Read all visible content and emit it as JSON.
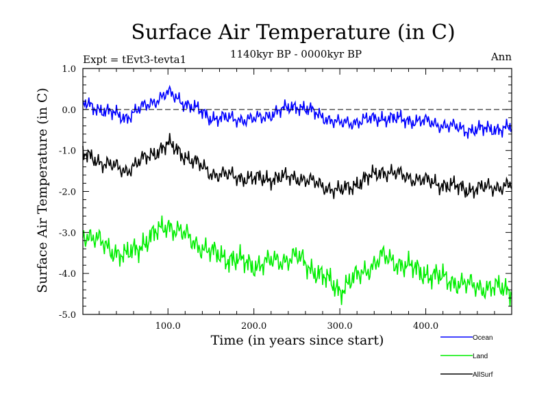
{
  "chart_data": {
    "type": "line",
    "title": "Surface Air Temperature (in C)",
    "subtitle": "1140kyr BP - 0000kyr BP",
    "left_annotation": "Expt = tEvt3-tevta1",
    "right_annotation": "Ann",
    "xlabel": "Time (in years since start)",
    "ylabel": "Surface Air Temperature (in C)",
    "xlim": [
      1,
      500
    ],
    "ylim": [
      -5.0,
      1.0
    ],
    "x_ticks": [
      100,
      200,
      300,
      400
    ],
    "x_tick_labels": [
      "100.0",
      "200.0",
      "300.0",
      "400.0"
    ],
    "y_ticks": [
      1.0,
      0.0,
      -1.0,
      -2.0,
      -3.0,
      -4.0,
      -5.0
    ],
    "y_tick_labels": [
      "1.0",
      "0.0",
      "-1.0",
      "-2.0",
      "-3.0",
      "-4.0",
      "-5.0"
    ],
    "reference_line": 0.0,
    "x_step": 50,
    "series": [
      {
        "name": "Ocean",
        "color": "#0000ff",
        "x": [
          1,
          50,
          100,
          150,
          200,
          250,
          300,
          350,
          400,
          450,
          500
        ],
        "values": [
          0.15,
          -0.2,
          0.4,
          -0.2,
          -0.25,
          0.1,
          -0.35,
          -0.2,
          -0.3,
          -0.5,
          -0.45
        ]
      },
      {
        "name": "Land",
        "color": "#00ee00",
        "x": [
          1,
          50,
          100,
          150,
          200,
          250,
          300,
          350,
          400,
          450,
          500
        ],
        "values": [
          -3.0,
          -3.6,
          -2.8,
          -3.5,
          -3.8,
          -3.6,
          -4.4,
          -3.6,
          -4.0,
          -4.3,
          -4.4
        ]
      },
      {
        "name": "AllSurf",
        "color": "#000000",
        "x": [
          1,
          50,
          100,
          150,
          200,
          250,
          300,
          350,
          400,
          450,
          500
        ],
        "values": [
          -1.1,
          -1.5,
          -0.85,
          -1.55,
          -1.7,
          -1.65,
          -2.0,
          -1.5,
          -1.75,
          -1.95,
          -1.85
        ]
      }
    ]
  }
}
